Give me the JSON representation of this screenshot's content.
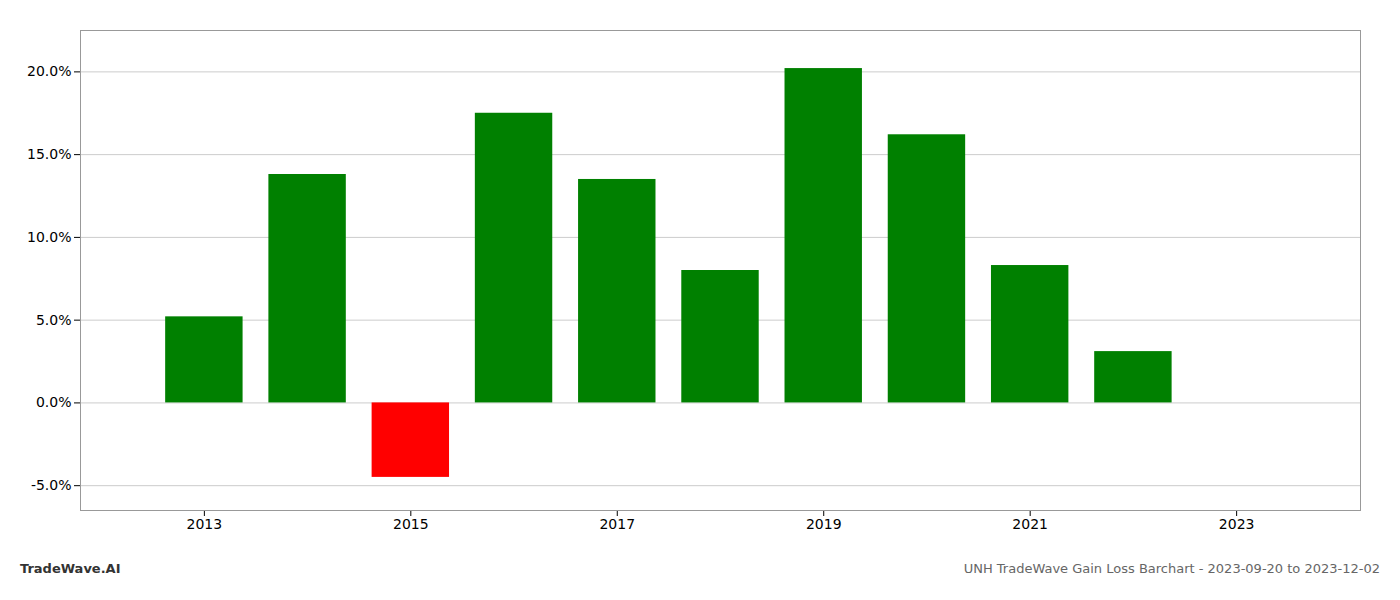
{
  "chart_data": {
    "type": "bar",
    "title": "UNH TradeWave Gain Loss Barchart - 2023-09-20 to 2023-12-02",
    "annotations": [
      "TradeWave.AI"
    ],
    "x": [
      2013,
      2014,
      2015,
      2016,
      2017,
      2018,
      2019,
      2020,
      2021,
      2022
    ],
    "values": [
      0.052,
      0.138,
      -0.045,
      0.175,
      0.135,
      0.08,
      0.202,
      0.162,
      0.083,
      0.031
    ],
    "colors": [
      "#008000",
      "#008000",
      "#ff0000",
      "#008000",
      "#008000",
      "#008000",
      "#008000",
      "#008000",
      "#008000",
      "#008000"
    ],
    "xlim": [
      2011.8,
      2024.2
    ],
    "xticks": [
      2013,
      2015,
      2017,
      2019,
      2021,
      2023
    ],
    "ylim": [
      -0.065,
      0.225
    ],
    "yticks": [
      {
        "value": -0.05,
        "label": "-5.0%"
      },
      {
        "value": 0.0,
        "label": "0.0%"
      },
      {
        "value": 0.05,
        "label": "5.0%"
      },
      {
        "value": 0.1,
        "label": "10.0%"
      },
      {
        "value": 0.15,
        "label": "15.0%"
      },
      {
        "value": 0.2,
        "label": "20.0%"
      }
    ],
    "grid": true
  }
}
